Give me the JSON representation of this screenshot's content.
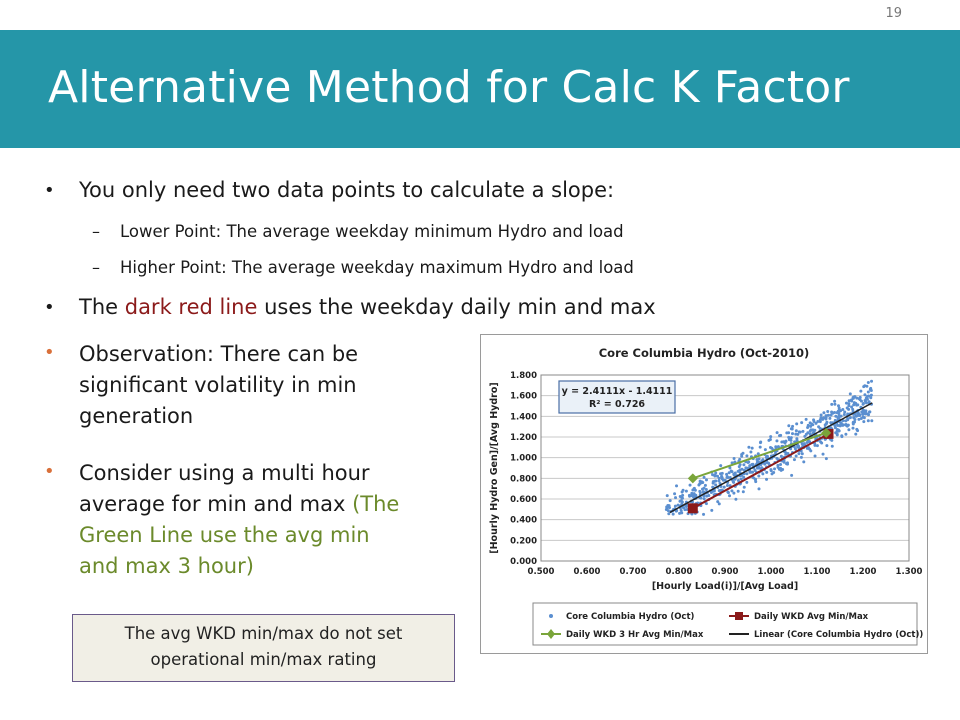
{
  "page_number": "19",
  "title": "Alternative Method for Calc K Factor",
  "bullet1": "You only need two data points to calculate a slope:",
  "sub1": "Lower Point: The average weekday minimum Hydro and load",
  "sub2": "Higher Point: The average weekday maximum Hydro and load",
  "bullet2": {
    "pre": "The ",
    "highlight": "dark red line",
    "post": " uses the weekday daily min and max"
  },
  "observation": [
    "Observation: There can be",
    "significant volatility in min",
    "generation"
  ],
  "consider": {
    "line1": "Consider using a multi hour",
    "line2_pre": "average for min and max ",
    "line2_green": "(The",
    "line3": "Green Line use the avg min",
    "line4": "and max 3 hour)"
  },
  "note": [
    "The avg WKD min/max do not set",
    "operational min/max rating"
  ],
  "colors": {
    "header": "#2596a8",
    "dark_red": "#8b1a1a",
    "green_text": "#6b8a2b",
    "scatter": "#5b8fd0",
    "green_line": "#7aa53a",
    "black_line": "#222222"
  },
  "chart_data": {
    "type": "scatter",
    "title": "Core Columbia Hydro (Oct-2010)",
    "xlabel": "[Hourly Load(i)]/[Avg Load]",
    "ylabel": "[Hourly Hydro Gen]/[Avg Hydro]",
    "xlim": [
      0.5,
      1.3
    ],
    "ylim": [
      0.0,
      1.8
    ],
    "x_ticks": [
      "0.500",
      "0.600",
      "0.700",
      "0.800",
      "0.900",
      "1.000",
      "1.100",
      "1.200",
      "1.300"
    ],
    "y_ticks": [
      "0.000",
      "0.200",
      "0.400",
      "0.600",
      "0.800",
      "1.000",
      "1.200",
      "1.400",
      "1.600",
      "1.800"
    ],
    "equation": "y = 2.4111x - 1.4111",
    "r_squared": "R² = 0.726",
    "trendline": {
      "slope": 2.4111,
      "intercept": -1.4111,
      "x_range": [
        0.78,
        1.22
      ]
    },
    "series": [
      {
        "name": "Core Columbia Hydro (Oct)",
        "kind": "scatter",
        "color": "#5b8fd0",
        "cloud": {
          "x_range": [
            0.77,
            1.22
          ],
          "n": 700,
          "noise": 0.16
        }
      },
      {
        "name": "Daily WKD Avg Min/Max",
        "kind": "line",
        "color": "#8b1a1a",
        "points": [
          [
            0.83,
            0.51
          ],
          [
            1.125,
            1.23
          ]
        ]
      },
      {
        "name": "Daily WKD 3 Hr Avg Min/Max",
        "kind": "line",
        "color": "#7aa53a",
        "points": [
          [
            0.83,
            0.8
          ],
          [
            1.12,
            1.24
          ]
        ]
      }
    ],
    "legend": [
      {
        "label": "Core Columbia Hydro (Oct)",
        "marker": "dot",
        "color": "#5b8fd0"
      },
      {
        "label": "Daily WKD Avg Min/Max",
        "marker": "square-line",
        "color": "#8b1a1a"
      },
      {
        "label": "Daily WKD 3 Hr Avg Min/Max",
        "marker": "diamond-line",
        "color": "#7aa53a"
      },
      {
        "label": "Linear (Core Columbia Hydro (Oct))",
        "marker": "line",
        "color": "#222222"
      }
    ],
    "legend_position": "bottom"
  }
}
